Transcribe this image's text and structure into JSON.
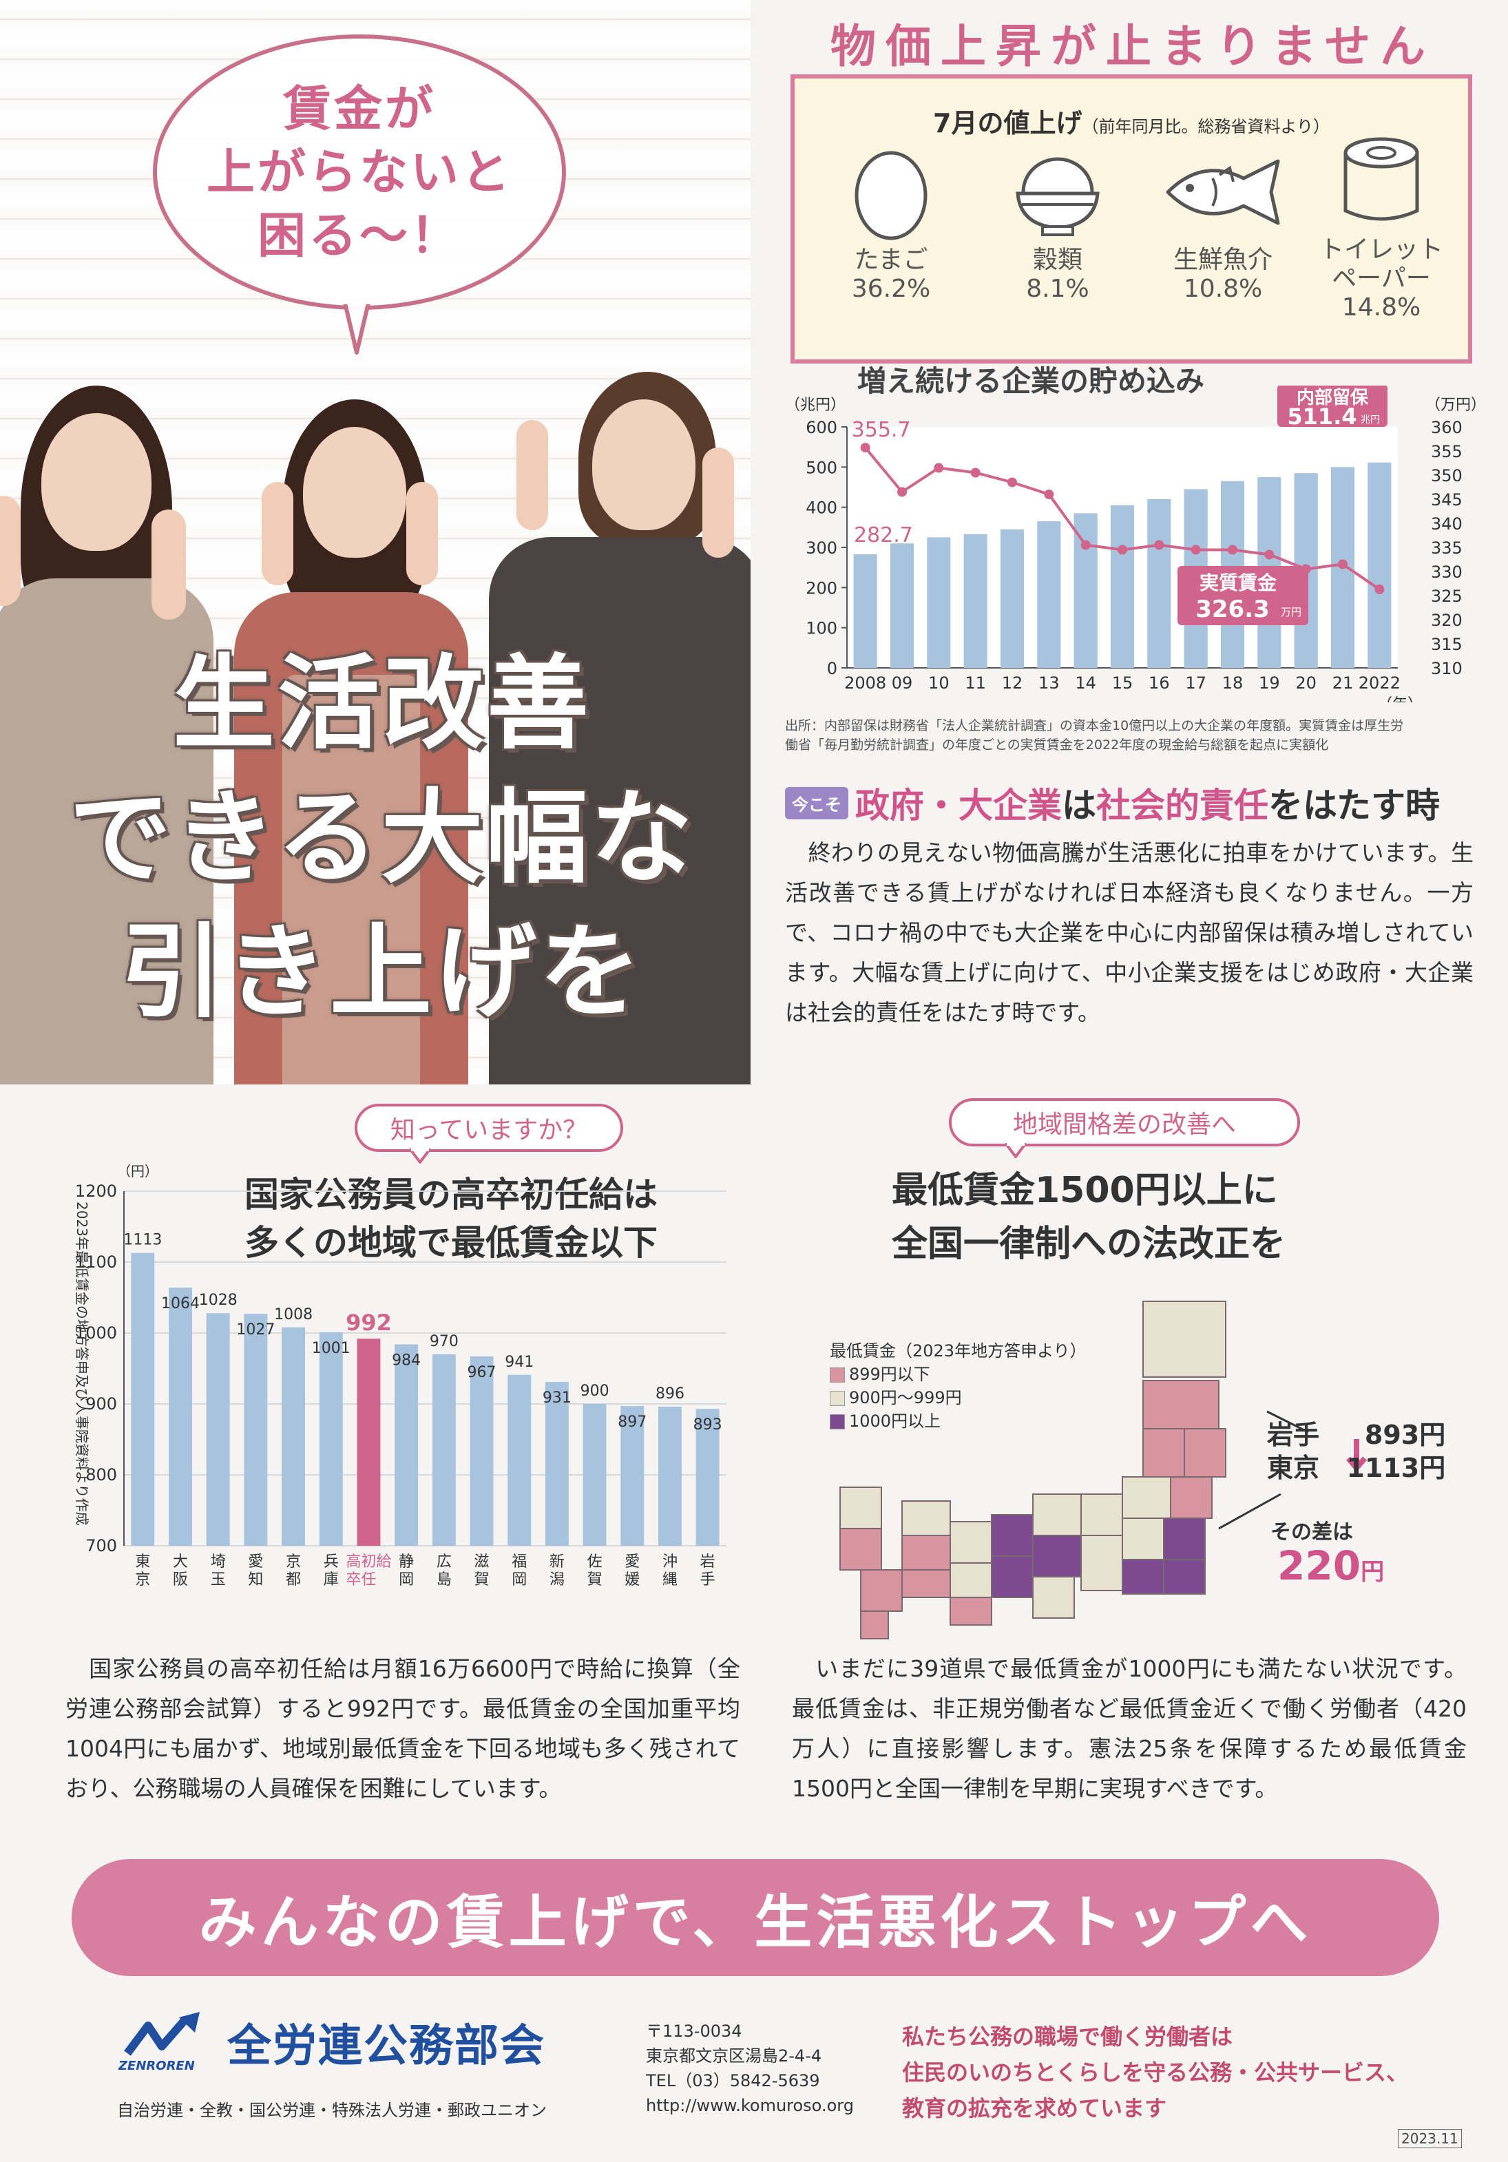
{
  "hero": {
    "bubble_lines": [
      "賃金が",
      "上がらないと",
      "困る〜！"
    ],
    "headline_lines": [
      "生活改善",
      "できる大幅な",
      "引き上げを"
    ]
  },
  "prices": {
    "title": "物価上昇が止まりません",
    "box_title": "7月の値上げ",
    "box_title_note": "（前年同月比。総務省資料より）",
    "items": [
      {
        "name": "たまご",
        "name2": "",
        "value": "36.2%",
        "icon": "egg-icon"
      },
      {
        "name": "穀類",
        "name2": "",
        "value": "8.1%",
        "icon": "rice-bowl-icon"
      },
      {
        "name": "生鮮魚介",
        "name2": "",
        "value": "10.8%",
        "icon": "fish-icon"
      },
      {
        "name": "トイレット",
        "name2": "ペーパー",
        "value": "14.8%",
        "icon": "toilet-paper-icon"
      }
    ]
  },
  "chart1": {
    "title": "増え続ける企業の貯め込み",
    "left_unit": "（兆円）",
    "right_unit": "（万円）",
    "year_unit": "（年）",
    "retained_label": "内部留保",
    "retained_value": "511.4",
    "retained_unit": "兆円",
    "wage_label": "実質賃金",
    "wage_value": "326.3",
    "wage_unit": "万円",
    "first_bar_label": "282.7",
    "first_line_label": "355.7",
    "source_lines": [
      "出所：内部留保は財務省「法人企業統計調査」の資本金10億円以上の大企業の年度額。実質賃金は厚生労",
      "働省「毎月勤労統計調査」の年度ごとの実質賃金を2022年度の現金給与総額を起点に実額化"
    ]
  },
  "chart_data": [
    {
      "type": "bar",
      "title": "増え続ける企業の貯め込み",
      "categories": [
        "2008",
        "09",
        "10",
        "11",
        "12",
        "13",
        "14",
        "15",
        "16",
        "17",
        "18",
        "19",
        "20",
        "21",
        "2022"
      ],
      "series": [
        {
          "name": "内部留保",
          "axis": "left",
          "type": "bar",
          "values": [
            282.7,
            310,
            325,
            333,
            345,
            365,
            385,
            405,
            420,
            445,
            465,
            475,
            485,
            500,
            511.4
          ]
        },
        {
          "name": "実質賃金",
          "axis": "right",
          "type": "line",
          "values": [
            355.7,
            346.5,
            351.5,
            350.5,
            348.5,
            346,
            335.5,
            334.5,
            335.5,
            334.5,
            334.5,
            333.5,
            330.5,
            331.5,
            326.3
          ]
        }
      ],
      "ylim_left": [
        0,
        600
      ],
      "yticks_left": [
        0,
        100,
        200,
        300,
        400,
        500,
        600
      ],
      "ylim_right": [
        310,
        360
      ],
      "yticks_right": [
        310,
        315,
        320,
        325,
        330,
        335,
        340,
        345,
        350,
        355,
        360
      ],
      "xlabel": "（年）",
      "ylabel_left": "（兆円）",
      "ylabel_right": "（万円）"
    },
    {
      "type": "bar",
      "title": "国家公務員の高卒初任給は多くの地域で最低賃金以下",
      "ylabel": "2023年最低賃金の地方答申及び人事院資料より作成",
      "yunit": "（円）",
      "categories": [
        "東京",
        "大阪",
        "埼玉",
        "愛知",
        "京都",
        "兵庫",
        "高卒初任給",
        "静岡",
        "広島",
        "滋賀",
        "福岡",
        "新潟",
        "佐賀",
        "愛媛",
        "沖縄",
        "岩手"
      ],
      "values": [
        1113,
        1064,
        1028,
        1027,
        1008,
        1001,
        992,
        984,
        970,
        967,
        941,
        931,
        900,
        897,
        896,
        893
      ],
      "highlight_index": 6,
      "ylim": [
        700,
        1200
      ],
      "yticks": [
        700,
        800,
        900,
        1000,
        1100,
        1200
      ]
    }
  ],
  "responsibility": {
    "badge": "今こそ",
    "title_a": "政府・大企業",
    "title_b": "は",
    "title_c": "社会的責任",
    "title_d": "をはたす時",
    "body": "　終わりの見えない物価高騰が生活悪化に拍車をかけています。生活改善できる賃上げがなければ日本経済も良くなりません。一方で、コロナ禍の中でも大企業を中心に内部留保は積み増しされています。大幅な賃上げに向けて、中小企業支援をはじめ政府・大企業は社会的責任をはたす時です。"
  },
  "civil": {
    "pill": "知っていますか？",
    "title_lines": [
      "国家公務員の高卒初任給は",
      "多くの地域で最低賃金以下"
    ],
    "body": "　国家公務員の高卒初任給は月額16万6600円で時給に換算（全労連公務部会試算）すると992円です。最低賃金の全国加重平均1004円にも届かず、地域別最低賃金を下回る地域も多く残されており、公務職場の人員確保を困難にしています。"
  },
  "regional": {
    "pill": "地域間格差の改善へ",
    "title_lines": [
      "最低賃金1500円以上に",
      "全国一律制への法改正を"
    ],
    "legend_title": "最低賃金（2023年地方答申より）",
    "legend": [
      {
        "label": "899円以下",
        "color": "#d9959f"
      },
      {
        "label": "900円〜999円",
        "color": "#e6e2cf"
      },
      {
        "label": "1000円以上",
        "color": "#7c4a8e"
      }
    ],
    "iwate_label": "岩手",
    "iwate_value": "893円",
    "tokyo_label": "東京",
    "tokyo_value": "1113円",
    "diff_label": "その差は",
    "diff_value": "220",
    "diff_unit": "円",
    "body": "　いまだに39道県で最低賃金が1000円にも満たない状況です。最低賃金は、非正規労働者など最低賃金近くで働く労働者（420万人）に直接影響します。憲法25条を保障するため最低賃金1500円と全国一律制を早期に実現すべきです。"
  },
  "banner": "みんなの賃上げで、生活悪化ストップへ",
  "footer": {
    "logo_text": "ZENROREN",
    "org_name": "全労連公務部会",
    "unions": "自治労連・全教・国公労連・特殊法人労連・郵政ユニオン",
    "postal": "〒113-0034",
    "address": "東京都文京区湯島2-4-4",
    "tel": "TEL（03）5842-5639",
    "url": "http://www.komuroso.org",
    "tagline_lines": [
      "私たち公務の職場で働く労働者は",
      "住民のいのちとくらしを守る公務・公共サービス、",
      "教育の拡充を求めています"
    ],
    "date": "2023.11"
  },
  "colors": {
    "accent_pink": "#d0648a",
    "bar_blue": "#a7c3dd",
    "highlight": "#d0648a",
    "brand_blue": "#1f4f9e"
  }
}
